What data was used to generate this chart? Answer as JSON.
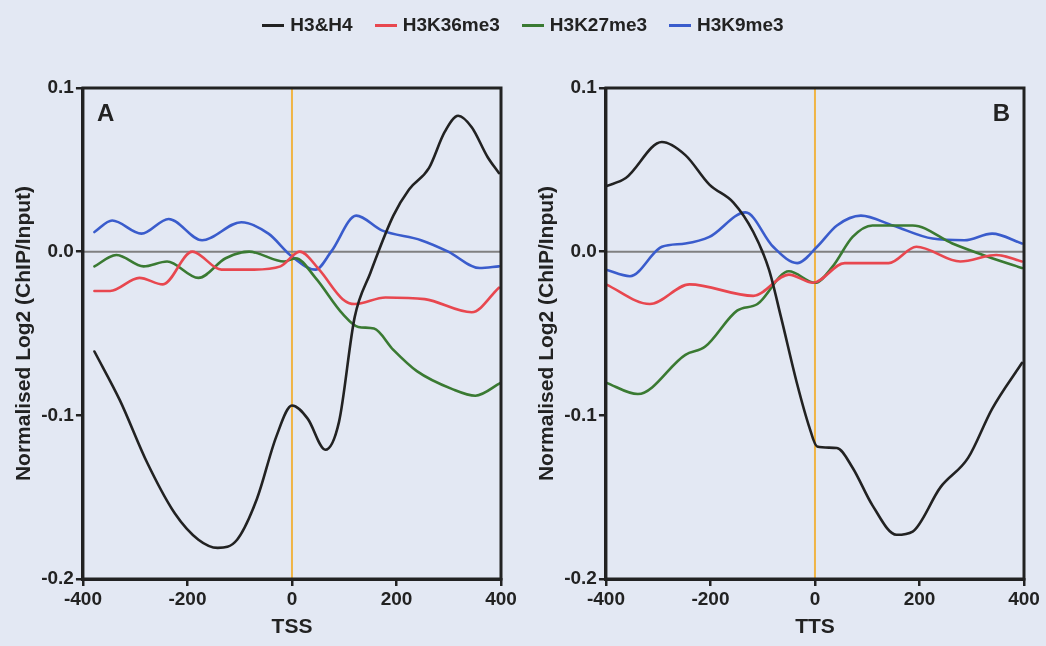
{
  "chart_data": [
    {
      "type": "line",
      "xlabel": "TSS",
      "ylabel": "Normalised Log2 (ChIP/Input)",
      "annotations": [
        "A"
      ],
      "legend": "top",
      "marker": "none",
      "line_style": "solid",
      "xlim": [
        -400,
        400
      ],
      "xticks": [
        -400,
        -200,
        0,
        200,
        400
      ],
      "ylim": [
        -0.2,
        0.1
      ],
      "yticks": [
        -0.2,
        -0.1,
        {
          "value": 0,
          "label": "0.0"
        },
        0.1
      ],
      "ref_lines": [
        {
          "axis": "x",
          "value": 0,
          "color": "#f0b445"
        },
        {
          "axis": "y",
          "value": 0,
          "color": "#808080"
        }
      ],
      "series": [
        {
          "name": "H3&H4",
          "color": "#222222",
          "x": [
            -378,
            -329,
            -277,
            -224,
            -179,
            -142,
            -105,
            -67,
            -30,
            0,
            30,
            64,
            90,
            120,
            150,
            194,
            224,
            262,
            292,
            318,
            344,
            374,
            396
          ],
          "values": [
            -0.061,
            -0.091,
            -0.129,
            -0.16,
            -0.176,
            -0.181,
            -0.176,
            -0.151,
            -0.113,
            -0.094,
            -0.102,
            -0.121,
            -0.104,
            -0.04,
            -0.013,
            0.022,
            0.038,
            0.051,
            0.073,
            0.083,
            0.076,
            0.058,
            0.048
          ]
        },
        {
          "name": "H3K36me3",
          "color": "#e8474f",
          "x": [
            -378,
            -348,
            -292,
            -247,
            -191,
            -135,
            -75,
            -22,
            15,
            52,
            97,
            120,
            179,
            254,
            344,
            396
          ],
          "values": [
            -0.024,
            -0.024,
            -0.016,
            -0.02,
            0,
            -0.011,
            -0.011,
            -0.009,
            0,
            -0.011,
            -0.029,
            -0.032,
            -0.028,
            -0.029,
            -0.037,
            -0.022
          ]
        },
        {
          "name": "H3K27me3",
          "color": "#3a7a32",
          "x": [
            -378,
            -336,
            -284,
            -239,
            -179,
            -127,
            -82,
            -15,
            7,
            45,
            97,
            127,
            157,
            194,
            239,
            307,
            351,
            400
          ],
          "values": [
            -0.009,
            -0.002,
            -0.009,
            -0.006,
            -0.016,
            -0.004,
            0,
            -0.006,
            -0.004,
            -0.016,
            -0.038,
            -0.046,
            -0.047,
            -0.06,
            -0.073,
            -0.084,
            -0.088,
            -0.08
          ]
        },
        {
          "name": "H3K9me3",
          "color": "#3a5ccc",
          "x": [
            -378,
            -344,
            -288,
            -236,
            -172,
            -97,
            -45,
            0,
            45,
            75,
            123,
            172,
            247,
            299,
            359,
            396
          ],
          "values": [
            0.012,
            0.019,
            0.011,
            0.02,
            0.007,
            0.018,
            0.011,
            -0.003,
            -0.011,
            0,
            0.022,
            0.013,
            0.007,
            0,
            -0.01,
            -0.009
          ]
        }
      ]
    },
    {
      "type": "line",
      "xlabel": "TTS",
      "ylabel": "Normalised Log2 (ChIP/Input)",
      "annotations": [
        "B"
      ],
      "marker": "none",
      "line_style": "solid",
      "xlim": [
        -400,
        400
      ],
      "xticks": [
        -400,
        -200,
        0,
        200,
        400
      ],
      "ylim": [
        -0.2,
        0.1
      ],
      "yticks": [
        -0.2,
        -0.1,
        {
          "value": 0,
          "label": "0.0"
        },
        0.1
      ],
      "ref_lines": [
        {
          "axis": "x",
          "value": 0,
          "color": "#f0b445"
        },
        {
          "axis": "y",
          "value": 0,
          "color": "#808080"
        }
      ],
      "series": [
        {
          "color": "#222222",
          "x": [
            -400,
            -362,
            -293,
            -248,
            -202,
            -156,
            -118,
            -88,
            -65,
            -34,
            -11,
            4,
            42,
            72,
            110,
            156,
            187,
            240,
            293,
            339,
            396
          ],
          "values": [
            0.04,
            0.045,
            0.067,
            0.059,
            0.041,
            0.03,
            0.012,
            -0.011,
            -0.04,
            -0.081,
            -0.107,
            -0.119,
            -0.12,
            -0.132,
            -0.155,
            -0.173,
            -0.171,
            -0.144,
            -0.126,
            -0.096,
            -0.068
          ]
        },
        {
          "color": "#e8474f",
          "x": [
            -400,
            -316,
            -240,
            -118,
            -50,
            -4,
            57,
            141,
            194,
            278,
            347,
            396
          ],
          "values": [
            -0.02,
            -0.032,
            -0.02,
            -0.027,
            -0.014,
            -0.019,
            -0.007,
            -0.007,
            0.003,
            -0.006,
            -0.002,
            -0.006
          ]
        },
        {
          "color": "#3a7a32",
          "x": [
            -400,
            -339,
            -248,
            -210,
            -149,
            -110,
            -50,
            0,
            34,
            72,
            110,
            187,
            263,
            339,
            396
          ],
          "values": [
            -0.08,
            -0.087,
            -0.063,
            -0.058,
            -0.036,
            -0.032,
            -0.012,
            -0.019,
            -0.009,
            0.009,
            0.016,
            0.016,
            0.005,
            -0.004,
            -0.01
          ]
        },
        {
          "color": "#3a5ccc",
          "x": [
            -400,
            -354,
            -293,
            -248,
            -202,
            -133,
            -80,
            -34,
            4,
            42,
            88,
            149,
            225,
            286,
            339,
            396
          ],
          "values": [
            -0.011,
            -0.015,
            0.003,
            0.005,
            0.009,
            0.024,
            0.003,
            -0.007,
            0.003,
            0.016,
            0.022,
            0.016,
            0.008,
            0.007,
            0.011,
            0.005
          ]
        }
      ]
    }
  ]
}
